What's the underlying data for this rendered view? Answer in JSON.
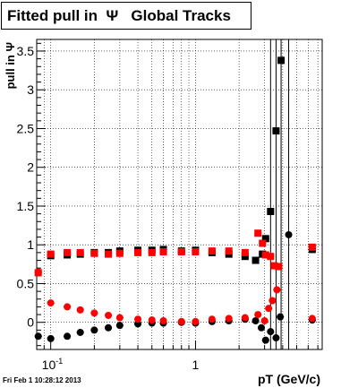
{
  "title": "Fitted pull in  Ψ   Global Tracks",
  "footer_timestamp": "Fri Feb  1 10:28:12 2013",
  "chart_data": {
    "type": "scatter",
    "title": "Fitted pull in  Ψ   Global Tracks",
    "xlabel": "pT (GeV/c)",
    "ylabel": "pull in Ψ",
    "xscale": "log",
    "xlim": [
      0.08,
      7.5
    ],
    "ylim": [
      -0.35,
      3.65
    ],
    "x_tick_labels": [
      "10^-1",
      "1"
    ],
    "y_ticks": [
      0,
      0.5,
      1,
      1.5,
      2,
      2.5,
      3,
      3.5
    ],
    "y_tick_labels": [
      "0",
      "0.5",
      "1",
      "1.5",
      "2",
      "2.5",
      "3",
      "3.5"
    ],
    "grid": true,
    "series": [
      {
        "color": "#000000",
        "marker": "square",
        "points": [
          [
            0.1,
            0.86
          ],
          [
            0.13,
            0.87
          ],
          [
            0.16,
            0.88
          ],
          [
            0.2,
            0.9
          ],
          [
            0.25,
            0.9
          ],
          [
            0.3,
            0.92
          ],
          [
            0.4,
            0.93
          ],
          [
            0.5,
            0.93
          ],
          [
            0.6,
            0.94
          ],
          [
            0.8,
            0.92
          ],
          [
            1.0,
            0.93
          ],
          [
            1.3,
            0.9
          ],
          [
            1.7,
            0.88
          ],
          [
            2.2,
            0.85
          ],
          [
            2.6,
            0.8
          ],
          [
            2.9,
            0.88
          ],
          [
            3.05,
            1.08
          ],
          [
            3.3,
            1.43
          ],
          [
            3.6,
            2.47
          ],
          [
            3.9,
            3.38
          ],
          [
            6.4,
            0.94
          ]
        ]
      },
      {
        "color": "#ff0000",
        "marker": "square",
        "points": [
          [
            0.082,
            0.64
          ],
          [
            0.1,
            0.88
          ],
          [
            0.13,
            0.9
          ],
          [
            0.16,
            0.9
          ],
          [
            0.2,
            0.89
          ],
          [
            0.25,
            0.88
          ],
          [
            0.3,
            0.89
          ],
          [
            0.4,
            0.9
          ],
          [
            0.5,
            0.9
          ],
          [
            0.6,
            0.91
          ],
          [
            0.8,
            0.91
          ],
          [
            1.0,
            0.91
          ],
          [
            1.3,
            0.92
          ],
          [
            1.7,
            0.92
          ],
          [
            2.2,
            0.9
          ],
          [
            2.7,
            1.15
          ],
          [
            2.9,
            1.02
          ],
          [
            3.05,
            0.87
          ],
          [
            3.3,
            0.85
          ],
          [
            3.5,
            0.73
          ],
          [
            3.75,
            0.72
          ],
          [
            6.4,
            0.97
          ]
        ]
      },
      {
        "color": "#000000",
        "marker": "circle",
        "points": [
          [
            0.082,
            -0.18
          ],
          [
            0.1,
            -0.21
          ],
          [
            0.13,
            -0.18
          ],
          [
            0.16,
            -0.13
          ],
          [
            0.2,
            -0.1
          ],
          [
            0.25,
            -0.07
          ],
          [
            0.3,
            -0.04
          ],
          [
            0.4,
            -0.02
          ],
          [
            0.5,
            -0.01
          ],
          [
            0.6,
            -0.01
          ],
          [
            0.8,
            0.0
          ],
          [
            1.0,
            -0.01
          ],
          [
            1.3,
            0.01
          ],
          [
            1.7,
            0.02
          ],
          [
            2.2,
            0.04
          ],
          [
            2.6,
            0.02
          ],
          [
            2.85,
            -0.07
          ],
          [
            3.05,
            -0.23
          ],
          [
            3.3,
            -0.12
          ],
          [
            3.6,
            -0.2
          ],
          [
            3.85,
            0.07
          ],
          [
            4.4,
            1.13
          ],
          [
            6.4,
            0.03
          ]
        ]
      },
      {
        "color": "#ff0000",
        "marker": "circle",
        "points": [
          [
            0.082,
            0.65
          ],
          [
            0.1,
            0.25
          ],
          [
            0.13,
            0.2
          ],
          [
            0.16,
            0.16
          ],
          [
            0.2,
            0.12
          ],
          [
            0.25,
            0.09
          ],
          [
            0.3,
            0.06
          ],
          [
            0.4,
            0.04
          ],
          [
            0.5,
            0.03
          ],
          [
            0.6,
            0.02
          ],
          [
            0.8,
            0.01
          ],
          [
            1.0,
            0.01
          ],
          [
            1.3,
            0.04
          ],
          [
            1.7,
            0.05
          ],
          [
            2.2,
            0.06
          ],
          [
            2.7,
            0.1
          ],
          [
            3.0,
            0.02
          ],
          [
            3.2,
            0.18
          ],
          [
            3.4,
            0.28
          ],
          [
            3.65,
            0.42
          ],
          [
            6.4,
            0.05
          ]
        ]
      }
    ]
  }
}
